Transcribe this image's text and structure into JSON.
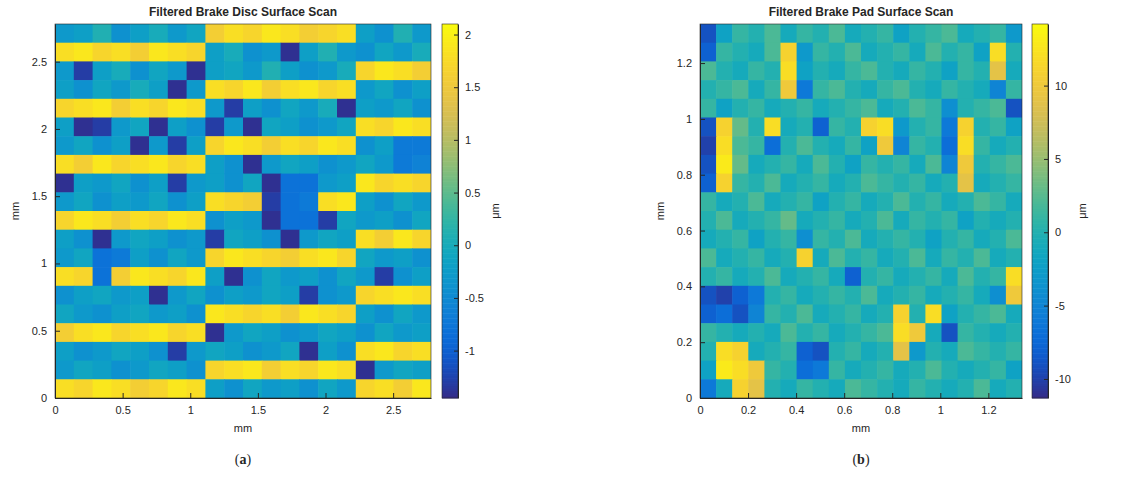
{
  "chart_data": [
    {
      "type": "heatmap",
      "title": "Filtered Brake Disc Surface Scan",
      "x_label": "mm",
      "y_label": "mm",
      "colorbar_label": "μm",
      "caption": "(a)",
      "xlim": [
        0,
        2.78
      ],
      "ylim": [
        0,
        2.78
      ],
      "xticks": [
        0,
        0.5,
        1,
        1.5,
        2,
        2.5
      ],
      "yticks": [
        0,
        0.5,
        1,
        1.5,
        2,
        2.5
      ],
      "colorbar_lim": [
        -1.45,
        2.1
      ],
      "colorbar_ticks": [
        -1,
        -0.5,
        0,
        0.5,
        1,
        1.5,
        2
      ],
      "cells": [
        [
          -0.3,
          -0.2,
          0.1,
          -0.4,
          -0.2,
          0,
          -0.3,
          -0.1,
          1.6,
          1.8,
          1.7,
          1.9,
          1.8,
          1.6,
          1.7,
          1.8,
          -0.2,
          -0.4,
          0.1,
          -0.3
        ],
        [
          1.8,
          1.9,
          1.7,
          1.8,
          1.6,
          1.9,
          1.8,
          1.7,
          -0.2,
          0,
          -0.4,
          -0.3,
          -1.4,
          -0.2,
          0.1,
          -0.3,
          -0.4,
          -0.1,
          -0.3,
          0
        ],
        [
          -0.3,
          -1.3,
          -0.2,
          0,
          -0.4,
          -0.1,
          -0.3,
          -1.4,
          -0.2,
          -0.1,
          -0.3,
          0.1,
          -0.2,
          -0.4,
          -0.3,
          0,
          1.7,
          1.9,
          1.8,
          1.6
        ],
        [
          -0.2,
          -0.4,
          -0.1,
          -0.3,
          0,
          -0.2,
          -1.4,
          -0.3,
          1.8,
          1.7,
          1.9,
          1.6,
          1.8,
          1.9,
          1.7,
          1.8,
          -0.3,
          -0.1,
          -0.4,
          -0.2
        ],
        [
          1.7,
          1.8,
          1.9,
          1.6,
          1.8,
          1.7,
          1.9,
          1.8,
          -0.3,
          -1.3,
          -0.2,
          -0.4,
          -0.1,
          -0.3,
          0,
          -1.4,
          -0.2,
          -0.3,
          -0.1,
          -0.4
        ],
        [
          -0.2,
          -1.4,
          -1.3,
          -0.3,
          -0.1,
          -1.4,
          -0.2,
          -0.4,
          -1.3,
          -0.3,
          -1.4,
          -0.1,
          -0.2,
          -0.4,
          -0.3,
          -0.1,
          1.8,
          1.7,
          1.9,
          1.8
        ],
        [
          -0.3,
          -0.1,
          -0.4,
          -0.2,
          -1.4,
          -0.3,
          -1.3,
          -0.2,
          1.7,
          1.9,
          1.8,
          1.6,
          1.8,
          1.7,
          1.9,
          1.8,
          -0.4,
          -0.2,
          -0.7,
          -0.7
        ],
        [
          1.8,
          1.6,
          1.9,
          1.7,
          1.8,
          1.9,
          1.7,
          1.8,
          -0.2,
          -0.4,
          -1.4,
          -0.3,
          -0.1,
          -0.2,
          -0.4,
          -0.3,
          -0.1,
          -0.3,
          -0.7,
          -0.6
        ],
        [
          -1.4,
          -0.2,
          -0.3,
          -0.1,
          -0.4,
          -0.2,
          -1.3,
          -0.3,
          -0.2,
          -0.4,
          -0.1,
          -1.4,
          -0.8,
          -0.8,
          -0.3,
          -0.2,
          1.9,
          1.7,
          1.8,
          1.7
        ],
        [
          -0.3,
          -0.1,
          -0.4,
          -0.2,
          -0.3,
          -0.1,
          -0.4,
          -0.2,
          1.8,
          1.7,
          1.6,
          -1.3,
          -0.8,
          -0.7,
          1.8,
          1.9,
          -0.2,
          -0.4,
          -0.1,
          -0.3
        ],
        [
          1.7,
          1.9,
          1.8,
          1.6,
          1.8,
          1.7,
          1.9,
          1.8,
          -0.4,
          -0.2,
          -0.3,
          -1.4,
          -0.8,
          -0.8,
          -1.3,
          -0.1,
          -0.3,
          -0.2,
          -0.4,
          -0.1
        ],
        [
          -0.2,
          -0.4,
          -1.4,
          -0.3,
          -0.1,
          -0.2,
          -0.4,
          -0.3,
          -1.3,
          -0.1,
          -0.2,
          -0.4,
          -1.4,
          -0.3,
          -0.1,
          -0.2,
          1.8,
          1.6,
          1.9,
          1.7
        ],
        [
          -0.3,
          -0.1,
          -0.8,
          -0.7,
          -0.2,
          -0.4,
          -0.1,
          -0.3,
          1.7,
          1.9,
          1.8,
          1.7,
          1.6,
          1.8,
          1.9,
          1.7,
          -0.1,
          -0.3,
          -0.2,
          -0.4
        ],
        [
          1.8,
          1.7,
          -0.8,
          1.6,
          1.9,
          1.8,
          1.7,
          1.9,
          -0.2,
          -1.4,
          -0.4,
          -0.1,
          -0.3,
          -0.2,
          -0.4,
          -0.1,
          -0.3,
          -1.3,
          -0.4,
          -0.2
        ],
        [
          -0.4,
          -0.2,
          -0.1,
          -0.3,
          -0.2,
          -1.4,
          -0.3,
          -0.1,
          -0.4,
          -0.2,
          -0.3,
          -0.1,
          -0.2,
          -1.3,
          -0.4,
          -0.3,
          1.7,
          1.8,
          1.9,
          1.8
        ],
        [
          -0.1,
          -0.3,
          -0.4,
          -0.2,
          -0.1,
          -0.3,
          -0.2,
          -0.4,
          1.9,
          1.8,
          1.7,
          1.8,
          1.6,
          1.9,
          1.8,
          1.7,
          -0.2,
          -0.4,
          -0.1,
          -0.3
        ],
        [
          1.6,
          1.8,
          1.9,
          1.7,
          1.8,
          1.9,
          1.7,
          1.8,
          -1.4,
          -0.3,
          -0.1,
          -0.2,
          -0.4,
          -0.3,
          -0.1,
          -0.2,
          -0.4,
          -0.1,
          -0.3,
          -0.2
        ],
        [
          -0.2,
          -0.4,
          -0.3,
          -0.1,
          -0.2,
          -0.4,
          -1.3,
          -0.3,
          -0.1,
          -0.2,
          -0.4,
          -0.3,
          -0.1,
          -1.4,
          -0.2,
          -0.4,
          1.8,
          1.9,
          1.7,
          1.8
        ],
        [
          -0.3,
          -0.1,
          -0.2,
          -0.4,
          -0.3,
          -0.1,
          -0.2,
          -0.4,
          1.7,
          1.8,
          1.9,
          1.6,
          1.8,
          1.7,
          1.9,
          1.8,
          -1.4,
          -0.3,
          -0.1,
          -0.2
        ],
        [
          1.8,
          1.7,
          1.9,
          1.8,
          1.6,
          1.7,
          1.9,
          1.8,
          -0.2,
          -0.4,
          -0.1,
          -0.3,
          -0.2,
          -0.4,
          -0.1,
          -0.3,
          1.7,
          1.8,
          1.6,
          1.9
        ]
      ]
    },
    {
      "type": "heatmap",
      "title": "Filtered Brake Pad Surface Scan",
      "x_label": "mm",
      "y_label": "mm",
      "colorbar_label": "μm",
      "caption": "(b)",
      "xlim": [
        0,
        1.34
      ],
      "ylim": [
        0,
        1.34
      ],
      "xticks": [
        0,
        0.2,
        0.4,
        0.6,
        0.8,
        1,
        1.2
      ],
      "yticks": [
        0,
        0.2,
        0.4,
        0.6,
        0.8,
        1,
        1.2
      ],
      "colorbar_lim": [
        -11.3,
        14.2
      ],
      "colorbar_ticks": [
        -10,
        -5,
        0,
        5,
        10
      ],
      "cells": [
        [
          -9,
          -2,
          1,
          0,
          2,
          -1,
          1,
          0,
          2,
          -1,
          0,
          1,
          -2,
          0,
          1,
          2,
          -1,
          0,
          1,
          -3
        ],
        [
          -8,
          1,
          0,
          -1,
          2,
          11,
          -3,
          1,
          0,
          2,
          -1,
          0,
          1,
          -1,
          2,
          0,
          1,
          -2,
          12,
          0
        ],
        [
          2,
          0,
          -1,
          1,
          0,
          12,
          -2,
          0,
          -1,
          1,
          2,
          0,
          -1,
          1,
          0,
          -2,
          1,
          0,
          9,
          -1
        ],
        [
          0,
          1,
          2,
          -1,
          1,
          10,
          -6,
          1,
          2,
          0,
          -1,
          1,
          2,
          0,
          -1,
          1,
          0,
          -1,
          -5,
          1
        ],
        [
          1,
          -2,
          0,
          1,
          -1,
          0,
          1,
          -1,
          0,
          1,
          2,
          -1,
          0,
          2,
          1,
          -4,
          0,
          1,
          2,
          -9
        ],
        [
          -9,
          11,
          3,
          0,
          12,
          -1,
          0,
          -8,
          1,
          0,
          11,
          12,
          -3,
          0,
          1,
          -6,
          11,
          0,
          1,
          -2
        ],
        [
          -10,
          12,
          2,
          1,
          -7,
          0,
          2,
          0,
          -1,
          1,
          -2,
          10,
          -5,
          1,
          0,
          -7,
          12,
          1,
          -1,
          0
        ],
        [
          -9,
          13,
          3,
          -1,
          0,
          1,
          -1,
          2,
          0,
          -2,
          1,
          0,
          1,
          -1,
          2,
          -5,
          10,
          0,
          1,
          2
        ],
        [
          -8,
          11,
          1,
          0,
          2,
          -1,
          0,
          1,
          -1,
          0,
          2,
          1,
          0,
          1,
          -1,
          0,
          9,
          -1,
          0,
          1
        ],
        [
          1,
          -1,
          0,
          2,
          -1,
          0,
          1,
          -2,
          0,
          1,
          -1,
          0,
          2,
          0,
          1,
          -1,
          0,
          2,
          1,
          -1
        ],
        [
          0,
          2,
          -1,
          0,
          1,
          3,
          -1,
          0,
          1,
          -1,
          0,
          2,
          -1,
          1,
          0,
          1,
          -2,
          0,
          -1,
          0
        ],
        [
          -1,
          0,
          1,
          -2,
          0,
          1,
          -4,
          1,
          0,
          2,
          -1,
          0,
          1,
          0,
          -2,
          0,
          1,
          -1,
          0,
          2
        ],
        [
          2,
          -1,
          0,
          1,
          -1,
          0,
          11,
          -1,
          2,
          0,
          1,
          -1,
          0,
          2,
          -1,
          1,
          0,
          2,
          -1,
          0
        ],
        [
          0,
          1,
          -1,
          0,
          2,
          -1,
          0,
          1,
          -1,
          -8,
          0,
          1,
          -1,
          0,
          1,
          -1,
          2,
          0,
          1,
          12
        ],
        [
          -9,
          -10,
          -8,
          -6,
          0,
          1,
          -1,
          0,
          1,
          0,
          2,
          -1,
          0,
          1,
          -1,
          0,
          1,
          -1,
          -4,
          10
        ],
        [
          -8,
          -7,
          -9,
          -5,
          1,
          0,
          2,
          -1,
          0,
          1,
          -1,
          0,
          11,
          0,
          12,
          -2,
          0,
          1,
          2,
          -1
        ],
        [
          1,
          0,
          -1,
          0,
          -1,
          2,
          0,
          1,
          -1,
          0,
          1,
          2,
          12,
          10,
          -1,
          -9,
          1,
          0,
          -1,
          0
        ],
        [
          0,
          12,
          11,
          -1,
          0,
          1,
          -8,
          -9,
          0,
          1,
          -1,
          0,
          9,
          -3,
          0,
          -1,
          2,
          1,
          0,
          1
        ],
        [
          -2,
          13,
          12,
          10,
          1,
          0,
          -7,
          -6,
          1,
          -1,
          0,
          1,
          -1,
          0,
          2,
          0,
          -1,
          0,
          1,
          -2
        ],
        [
          -6,
          -1,
          11,
          9,
          0,
          -1,
          1,
          0,
          -1,
          2,
          1,
          0,
          -1,
          1,
          0,
          -1,
          0,
          2,
          -1,
          0
        ]
      ]
    }
  ]
}
